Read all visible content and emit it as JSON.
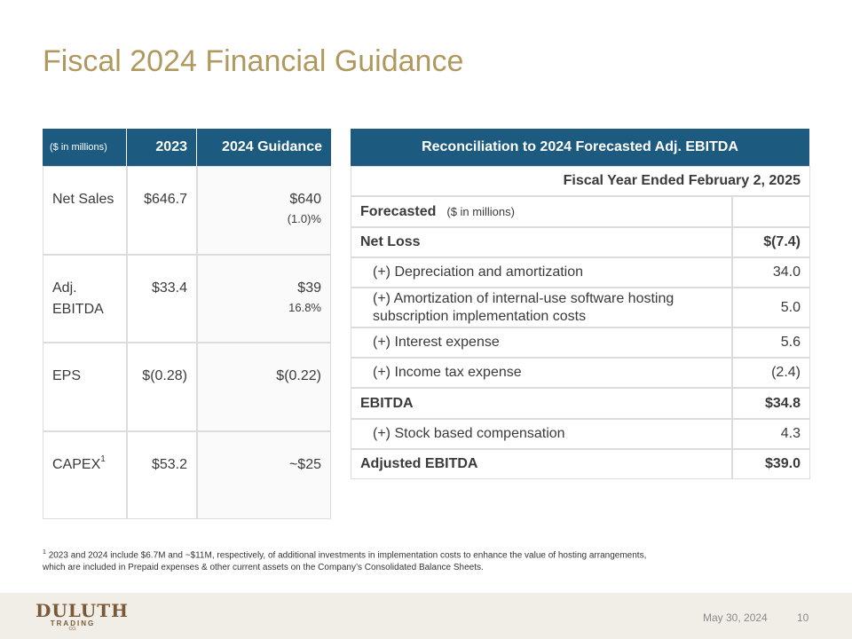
{
  "title": "Fiscal 2024 Financial Guidance",
  "guidance_table": {
    "header": [
      "($ in millions)",
      "2023",
      "2024 Guidance"
    ],
    "rows": [
      {
        "label": "Net Sales",
        "v2023": "$646.7",
        "v2024": "$640",
        "note": "(1.0)%"
      },
      {
        "label": "Adj. EBITDA",
        "v2023": "$33.4",
        "v2024": "$39",
        "note": "16.8%"
      },
      {
        "label": "EPS",
        "v2023": "$(0.28)",
        "v2024": "$(0.22)"
      },
      {
        "label": "CAPEX",
        "sup": "1",
        "v2023": "$53.2",
        "v2024": "~$25"
      }
    ]
  },
  "reconciliation": {
    "title": "Reconciliation to 2024 Forecasted Adj. EBITDA",
    "period": "Fiscal Year Ended February 2, 2025",
    "forecasted": "Forecasted",
    "unit": "($ in millions)",
    "rows": [
      {
        "label": "Net Loss",
        "value": "$(7.4)",
        "style": "bold"
      },
      {
        "label": "(+) Depreciation and amortization",
        "value": "34.0",
        "style": "indent"
      },
      {
        "label": "(+) Amortization of internal-use software hosting subscription implementation costs",
        "value": "5.0",
        "style": "indent"
      },
      {
        "label": "(+) Interest expense",
        "value": "5.6",
        "style": "indent"
      },
      {
        "label": "(+) Income tax expense",
        "value": "(2.4)",
        "style": "indent"
      },
      {
        "label": "EBITDA",
        "value": "$34.8",
        "style": "bold"
      },
      {
        "label": "(+) Stock based compensation",
        "value": "4.3",
        "style": "indent"
      },
      {
        "label": "Adjusted EBITDA",
        "value": "$39.0",
        "style": "bold"
      }
    ]
  },
  "footnote": {
    "marker": "1",
    "text": "2023 and 2024 include $6.7M and ~$11M, respectively, of additional investments in implementation costs to enhance the value of hosting arrangements, which are included in Prepaid expenses & other current assets on the Company’s Consolidated Balance Sheets."
  },
  "footer": {
    "logo": "DULUTH",
    "logo_sub": "TRADING",
    "logo_co": "CO.",
    "date": "May 30, 2024",
    "page": "10"
  }
}
